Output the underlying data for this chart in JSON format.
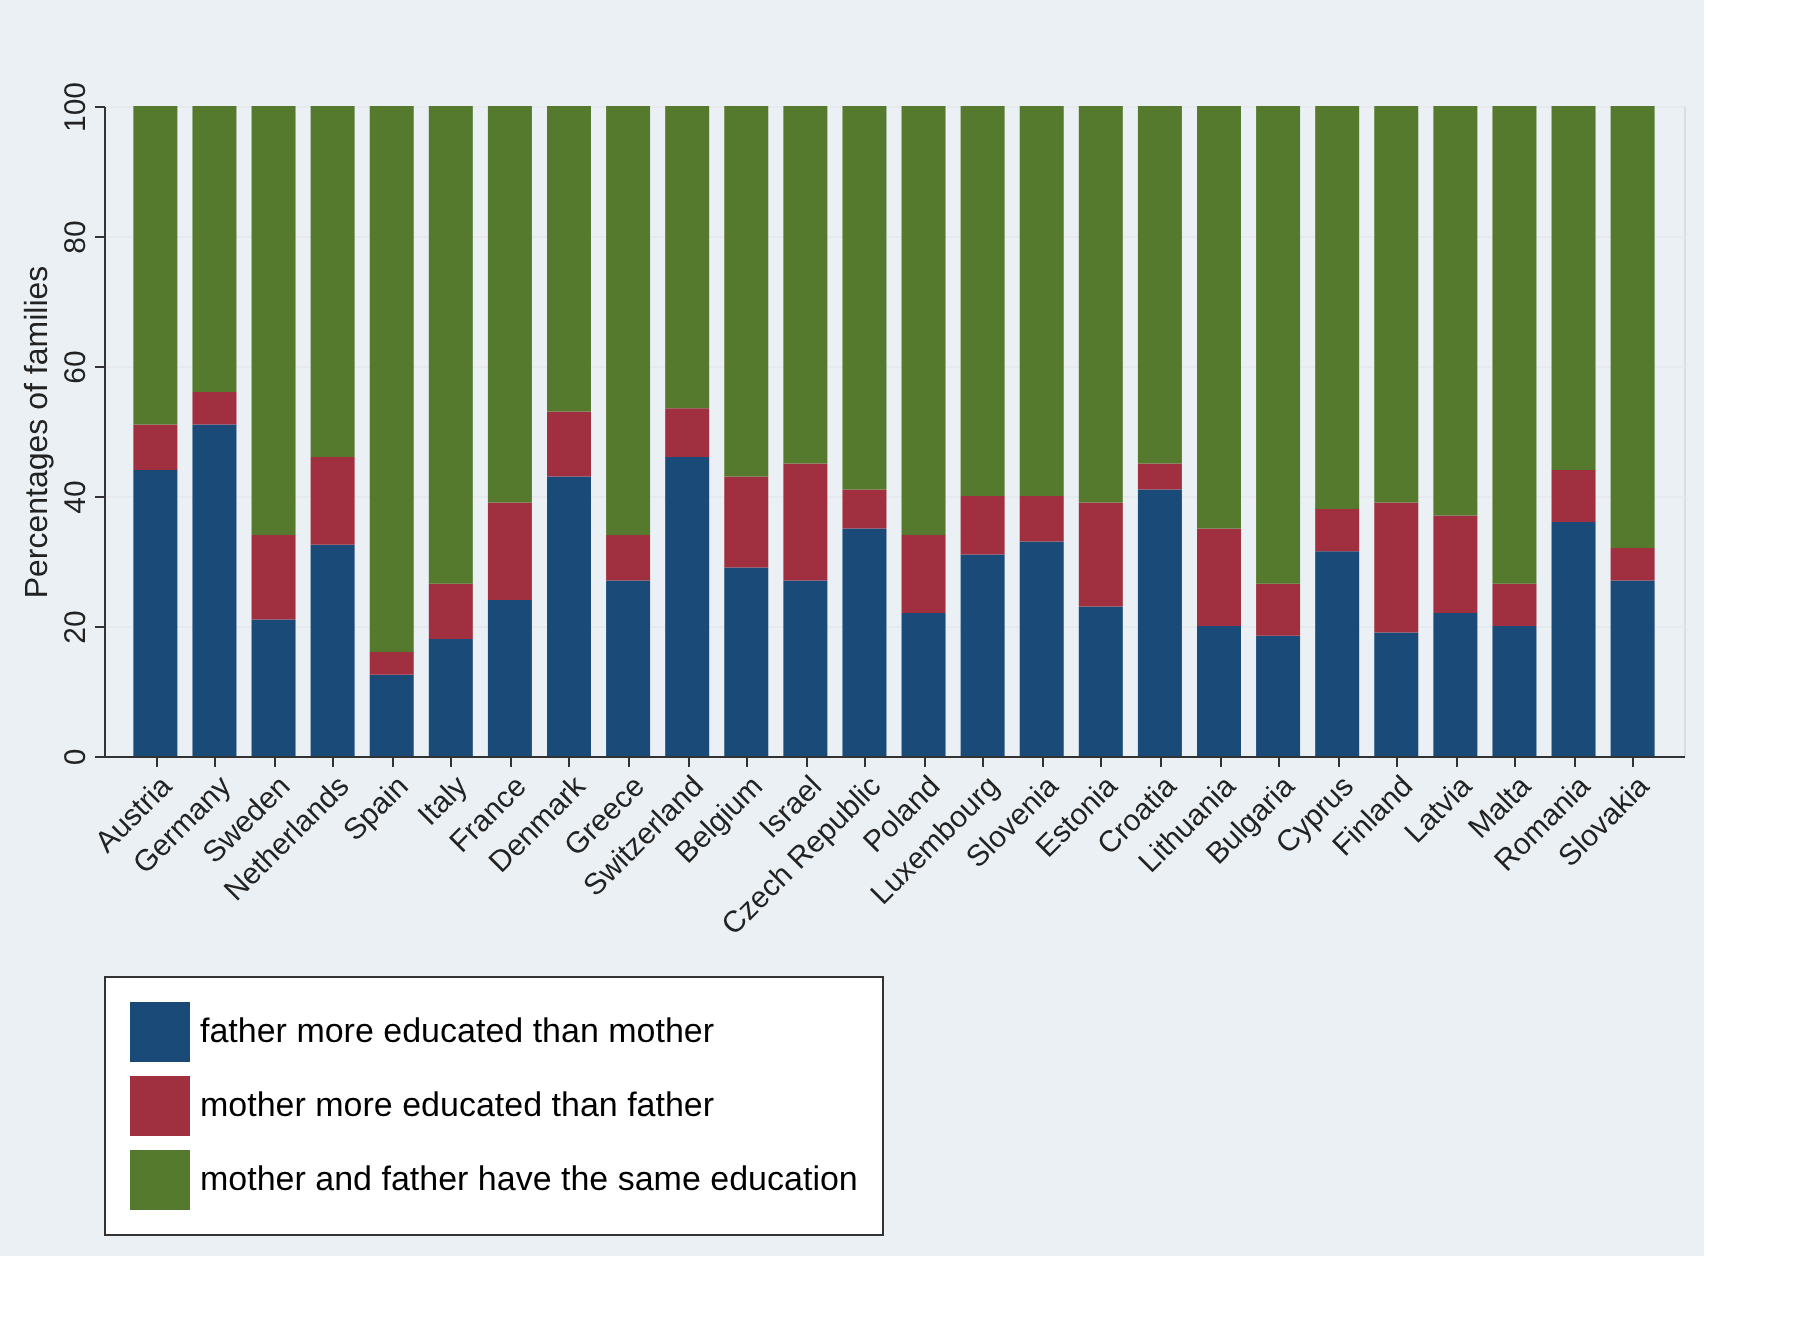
{
  "chart_data": {
    "type": "bar",
    "stacked": true,
    "ylabel": "Percentages of families",
    "categories": [
      "Austria",
      "Germany",
      "Sweden",
      "Netherlands",
      "Spain",
      "Italy",
      "France",
      "Denmark",
      "Greece",
      "Switzerland",
      "Belgium",
      "Israel",
      "Czech Republic",
      "Poland",
      "Luxembourg",
      "Slovenia",
      "Estonia",
      "Croatia",
      "Lithuania",
      "Bulgaria",
      "Cyprus",
      "Finland",
      "Latvia",
      "Malta",
      "Romania",
      "Slovakia"
    ],
    "series": [
      {
        "name": "father more educated than mother",
        "color": "#1a4a78",
        "values": [
          44,
          51,
          21,
          32.5,
          12.5,
          18,
          24,
          43,
          27,
          46,
          29,
          27,
          35,
          22,
          31,
          33,
          23,
          41,
          20,
          18.5,
          31.5,
          19,
          22,
          20,
          36,
          27
        ]
      },
      {
        "name": "mother more educated than father",
        "color": "#a03040",
        "values": [
          7,
          5,
          13,
          13.5,
          3.5,
          8.5,
          15,
          10,
          7,
          7.5,
          14,
          18,
          6,
          12,
          9,
          7,
          16,
          4,
          15,
          8,
          6.5,
          20,
          15,
          6.5,
          8,
          5
        ]
      },
      {
        "name": "mother and father have the same education",
        "color": "#557a2e",
        "values": [
          49,
          44,
          66,
          54,
          84,
          73.5,
          61,
          47,
          66,
          46.5,
          57,
          55,
          59,
          66,
          60,
          60,
          61,
          55,
          65,
          73.5,
          62,
          61,
          63,
          73.5,
          56,
          68
        ]
      }
    ],
    "ylim": [
      0,
      100
    ],
    "yticks": [
      0,
      20,
      40,
      60,
      80,
      100
    ],
    "grid": "y",
    "legend": "bottom"
  }
}
